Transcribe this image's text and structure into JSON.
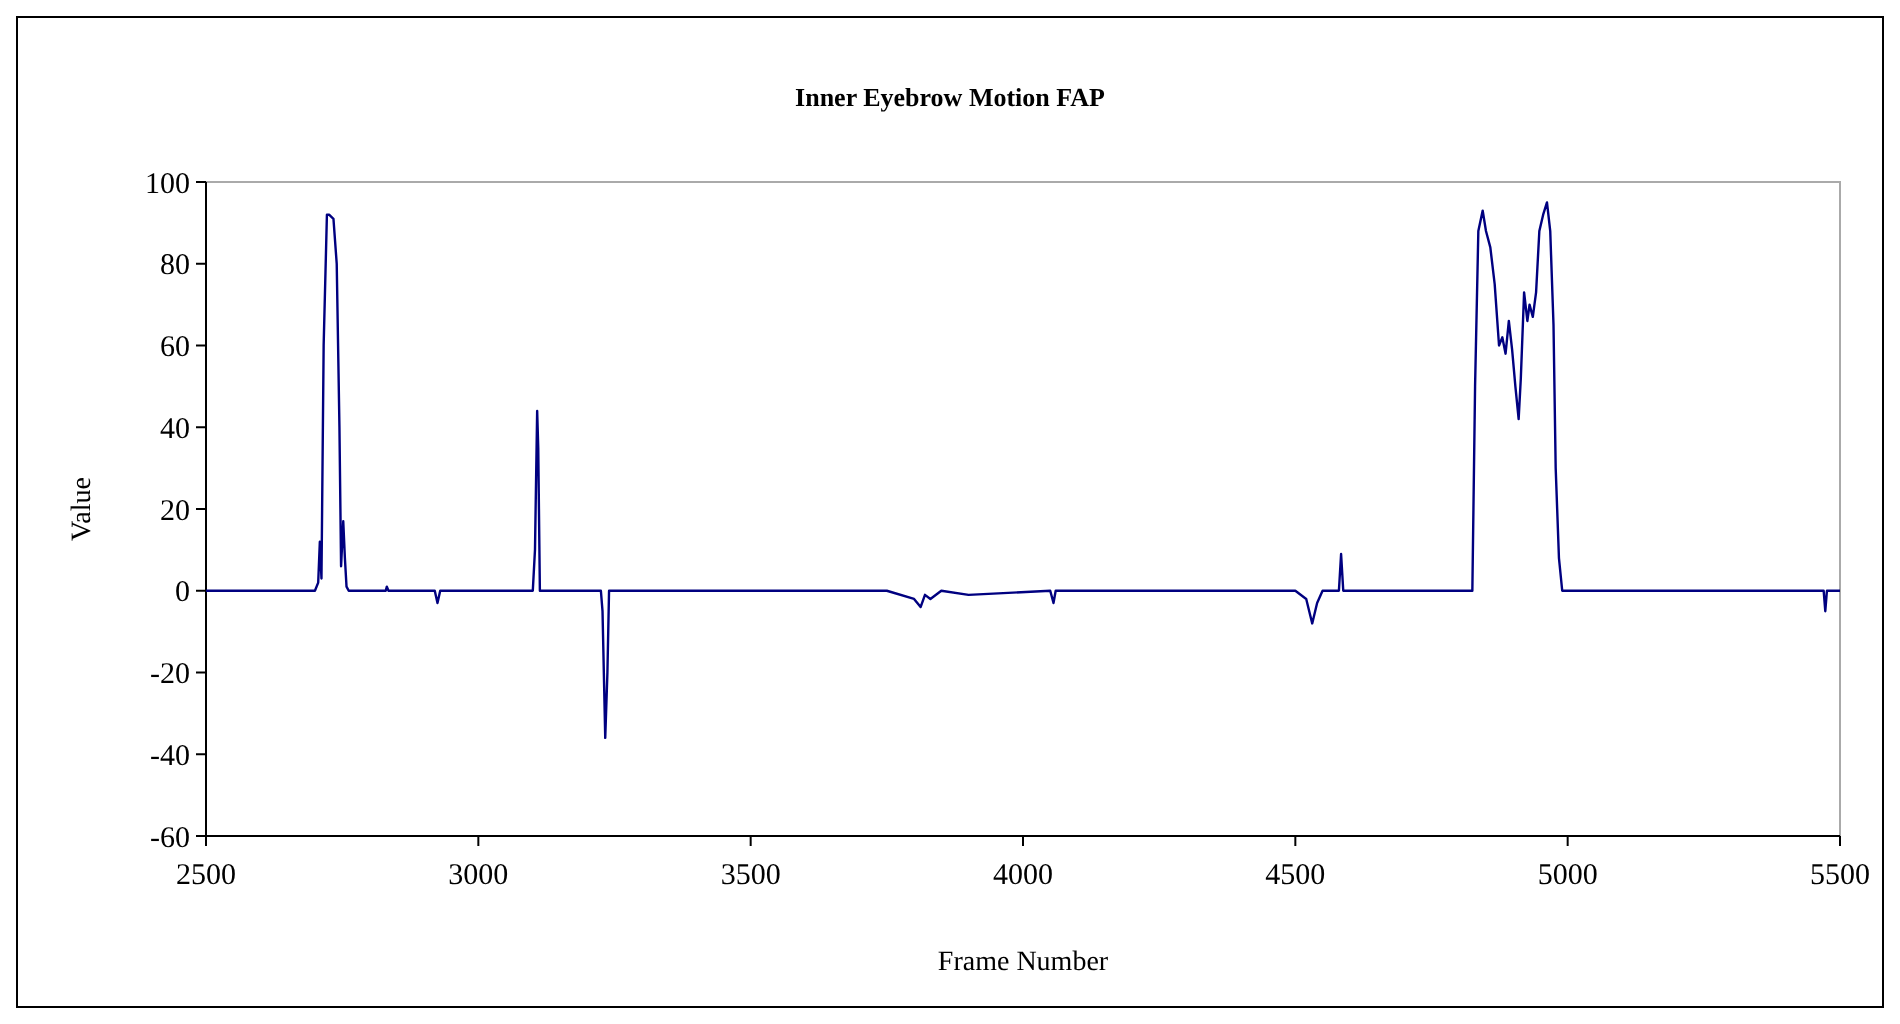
{
  "chart_data": {
    "type": "line",
    "title": "Inner Eyebrow Motion FAP",
    "xlabel": "Frame Number",
    "ylabel": "Value",
    "xlim": [
      2500,
      5500
    ],
    "xticks": [
      2500,
      3000,
      3500,
      4000,
      4500,
      5000,
      5500
    ],
    "ylim": [
      -60,
      100
    ],
    "yticks": [
      -60,
      -40,
      -20,
      0,
      20,
      40,
      60,
      80,
      100
    ],
    "grid": false,
    "marker": "none",
    "series": [
      {
        "color": "#000080",
        "x": [
          2500,
          2700,
          2706,
          2709,
          2712,
          2716,
          2722,
          2726,
          2734,
          2740,
          2745,
          2748,
          2752,
          2755,
          2758,
          2762,
          2770,
          2830,
          2832,
          2835,
          2920,
          2925,
          2930,
          3100,
          3104,
          3108,
          3110,
          3113,
          3116,
          3225,
          3228,
          3233,
          3237,
          3240,
          3750,
          3800,
          3812,
          3820,
          3830,
          3850,
          3900,
          4050,
          4056,
          4060,
          4500,
          4520,
          4531,
          4540,
          4550,
          4580,
          4584,
          4588,
          4592,
          4600,
          4825,
          4830,
          4836,
          4844,
          4850,
          4858,
          4866,
          4874,
          4880,
          4886,
          4892,
          4898,
          4904,
          4910,
          4914,
          4920,
          4926,
          4930,
          4936,
          4942,
          4948,
          4955,
          4962,
          4968,
          4974,
          4978,
          4984,
          4990,
          4996,
          5000,
          5470,
          5473,
          5476,
          5480,
          5500
        ],
        "values": [
          0,
          0,
          2,
          12,
          3,
          60,
          92,
          92,
          91,
          80,
          40,
          6,
          17,
          8,
          1,
          0,
          0,
          0,
          1,
          0,
          0,
          -3,
          0,
          0,
          10,
          44,
          35,
          0,
          0,
          0,
          -5,
          -36,
          -20,
          0,
          0,
          -2,
          -4,
          -1,
          -2,
          0,
          -1,
          0,
          -3,
          0,
          0,
          -2,
          -8,
          -3,
          0,
          0,
          9,
          0,
          0,
          0,
          0,
          50,
          88,
          93,
          88,
          84,
          75,
          60,
          62,
          58,
          66,
          59,
          50,
          42,
          52,
          73,
          66,
          70,
          67,
          73,
          88,
          92,
          95,
          88,
          65,
          30,
          8,
          0,
          0,
          0,
          0,
          -5,
          0,
          0,
          0
        ]
      }
    ]
  }
}
